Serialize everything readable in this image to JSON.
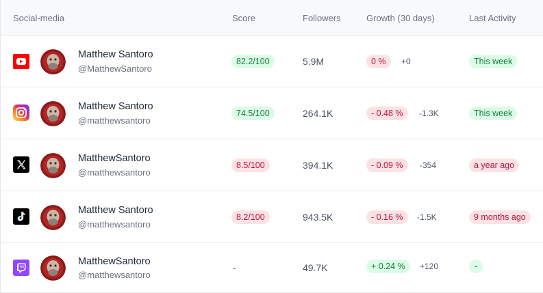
{
  "header": {
    "social_media": "Social-media",
    "score": "Score",
    "followers": "Followers",
    "growth": "Growth (30 days)",
    "last_activity": "Last Activity"
  },
  "rows": [
    {
      "platform": "youtube",
      "name": "Matthew Santoro",
      "handle": "@MatthewSantoro",
      "score": "82.2/100",
      "score_status": "good",
      "followers": "5.9M",
      "growth": "0 %",
      "growth_status": "negative",
      "delta": "+0",
      "activity": "This week",
      "activity_status": "good"
    },
    {
      "platform": "instagram",
      "name": "Matthew Santoro",
      "handle": "@matthewsantoro",
      "score": "74.5/100",
      "score_status": "good",
      "followers": "264.1K",
      "growth": "- 0.48 %",
      "growth_status": "negative",
      "delta": "-1.3K",
      "activity": "This week",
      "activity_status": "good"
    },
    {
      "platform": "x",
      "name": "MatthewSantoro",
      "handle": "@matthewsantoro",
      "score": "8.5/100",
      "score_status": "bad",
      "followers": "394.1K",
      "growth": "- 0.09 %",
      "growth_status": "negative",
      "delta": "-354",
      "activity": "a year ago",
      "activity_status": "bad"
    },
    {
      "platform": "tiktok",
      "name": "Matthew Santoro",
      "handle": "@matthewsantoro",
      "score": "8.2/100",
      "score_status": "bad",
      "followers": "943.5K",
      "growth": "- 0.16 %",
      "growth_status": "negative",
      "delta": "-1.5K",
      "activity": "9 months ago",
      "activity_status": "bad"
    },
    {
      "platform": "twitch",
      "name": "MatthewSantoro",
      "handle": "@matthewsantoro",
      "score": "-",
      "score_status": "none",
      "followers": "49.7K",
      "growth": "+ 0.24 %",
      "growth_status": "positive",
      "delta": "+120",
      "activity": "-",
      "activity_status": "good"
    }
  ],
  "colors": {
    "good_bg": "#dcfce7",
    "good_text": "#15803d",
    "bad_bg": "#fde2e4",
    "bad_text": "#be123c",
    "youtube": "#ff0000",
    "twitch": "#9146ff"
  }
}
